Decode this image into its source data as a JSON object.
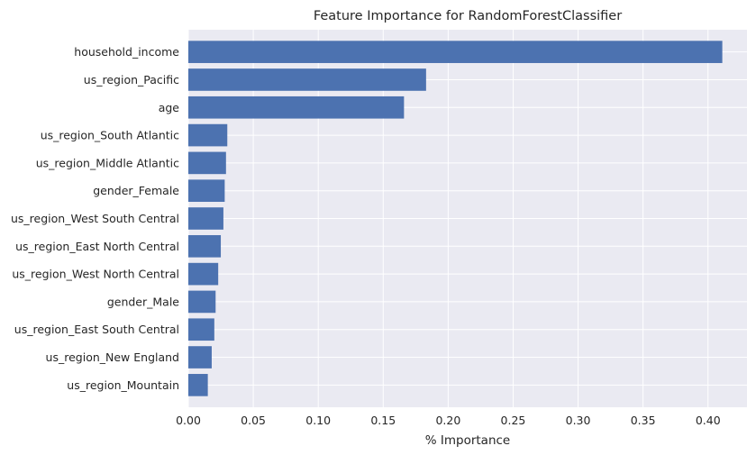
{
  "chart_data": {
    "type": "bar",
    "orientation": "horizontal",
    "title": "Feature Importance for RandomForestClassifier",
    "xlabel": "% Importance",
    "ylabel": "",
    "categories": [
      "household_income",
      "us_region_Pacific",
      "age",
      "us_region_South Atlantic",
      "us_region_Middle Atlantic",
      "gender_Female",
      "us_region_West South Central",
      "us_region_East North Central",
      "us_region_West North Central",
      "gender_Male",
      "us_region_East South Central",
      "us_region_New England",
      "us_region_Mountain"
    ],
    "values": [
      0.411,
      0.183,
      0.166,
      0.03,
      0.029,
      0.028,
      0.027,
      0.025,
      0.023,
      0.021,
      0.02,
      0.018,
      0.015
    ],
    "xlim": [
      0.0,
      0.43
    ],
    "xticks": [
      0.0,
      0.05,
      0.1,
      0.15,
      0.2,
      0.25,
      0.3,
      0.35,
      0.4
    ],
    "xtick_labels": [
      "0.00",
      "0.05",
      "0.10",
      "0.15",
      "0.20",
      "0.25",
      "0.30",
      "0.35",
      "0.40"
    ],
    "grid": true,
    "colors": {
      "bar": "#4c72b0",
      "background": "#eaeaf2",
      "grid": "#ffffff"
    }
  }
}
